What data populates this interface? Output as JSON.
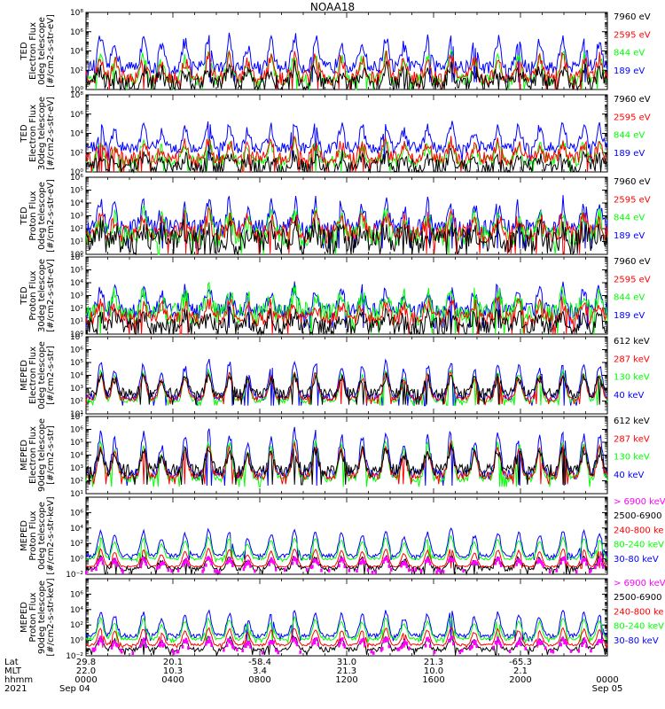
{
  "title": "NOAA18",
  "colors": {
    "blue": "#0000ff",
    "red": "#ff0000",
    "green": "#00ff00",
    "black": "#000000",
    "magenta": "#ff00ff"
  },
  "chart_data": [
    {
      "type": "line",
      "scale": "log",
      "ylabel": [
        "TED",
        "Electron Flux",
        "0deg telescope",
        "[#/cm2-s-str-eV]"
      ],
      "ylim_exp": [
        0,
        8
      ],
      "tick_labels": [
        "10⁰",
        "10²",
        "10⁴",
        "10⁶",
        "10⁸"
      ],
      "tick_exps": [
        0,
        2,
        4,
        6,
        8
      ],
      "legend": [
        {
          "text": "7960 eV",
          "color": "black"
        },
        {
          "text": "2595 eV",
          "color": "red"
        },
        {
          "text": "844 eV",
          "color": "green"
        },
        {
          "text": "189 eV",
          "color": "blue"
        }
      ],
      "baseline": {
        "blue": 2.3,
        "red": 1.2,
        "green": 1.0,
        "black": 0.6
      },
      "spread": {
        "blue": 0.7,
        "red": 0.8,
        "green": 0.6,
        "black": 0.9
      },
      "spike": 3.4
    },
    {
      "type": "line",
      "scale": "log",
      "ylabel": [
        "TED",
        "Electron Flux",
        "30deg telescope",
        "[#/cm2-s-str-eV]"
      ],
      "ylim_exp": [
        0,
        8
      ],
      "tick_labels": [
        "10⁰",
        "10²",
        "10⁴",
        "10⁶",
        "10⁸"
      ],
      "tick_exps": [
        0,
        2,
        4,
        6,
        8
      ],
      "legend": [
        {
          "text": "7960 eV",
          "color": "black"
        },
        {
          "text": "2595 eV",
          "color": "red"
        },
        {
          "text": "844 eV",
          "color": "green"
        },
        {
          "text": "189 eV",
          "color": "blue"
        }
      ],
      "baseline": {
        "blue": 2.5,
        "red": 1.4,
        "green": 1.1,
        "black": 0.5
      },
      "spread": {
        "blue": 0.6,
        "red": 0.7,
        "green": 0.6,
        "black": 0.8
      },
      "spike": 2.6
    },
    {
      "type": "line",
      "scale": "log",
      "ylabel": [
        "TED",
        "Proton Flux",
        "0deg telescope",
        "[#/cm2-s-str-eV]"
      ],
      "ylim_exp": [
        0,
        6
      ],
      "tick_labels": [
        "10⁰",
        "10¹",
        "10²",
        "10³",
        "10⁴",
        "10⁵",
        "10⁶"
      ],
      "tick_exps": [
        0,
        1,
        2,
        3,
        4,
        5,
        6
      ],
      "legend": [
        {
          "text": "7960 eV",
          "color": "black"
        },
        {
          "text": "2595 eV",
          "color": "red"
        },
        {
          "text": "844 eV",
          "color": "green"
        },
        {
          "text": "189 eV",
          "color": "blue"
        }
      ],
      "baseline": {
        "blue": 2.0,
        "red": 1.6,
        "green": 1.4,
        "black": 1.0
      },
      "spread": {
        "blue": 0.7,
        "red": 0.7,
        "green": 0.8,
        "black": 1.0
      },
      "spike": 2.2
    },
    {
      "type": "line",
      "scale": "log",
      "ylabel": [
        "TED",
        "Proton Flux",
        "30deg telescope",
        "[#/cm2-s-str-eV]"
      ],
      "ylim_exp": [
        0,
        6
      ],
      "tick_labels": [
        "10⁰",
        "10¹",
        "10²",
        "10³",
        "10⁴",
        "10⁵",
        "10⁶"
      ],
      "tick_exps": [
        0,
        1,
        2,
        3,
        4,
        5,
        6
      ],
      "legend": [
        {
          "text": "7960 eV",
          "color": "black"
        },
        {
          "text": "2595 eV",
          "color": "red"
        },
        {
          "text": "844 eV",
          "color": "green"
        },
        {
          "text": "189 eV",
          "color": "blue"
        }
      ],
      "baseline": {
        "blue": 1.8,
        "red": 1.2,
        "green": 1.6,
        "black": 0.6
      },
      "spread": {
        "blue": 0.6,
        "red": 0.6,
        "green": 0.9,
        "black": 0.7
      },
      "spike": 2.0
    },
    {
      "type": "line",
      "scale": "log",
      "ylabel": [
        "MEPED",
        "Electron Flux",
        "0deg telescope",
        "[#/cm2-s-str]"
      ],
      "ylim_exp": [
        1,
        7
      ],
      "tick_labels": [
        "10¹",
        "10²",
        "10³",
        "10⁴",
        "10⁵",
        "10⁶",
        "10⁷"
      ],
      "tick_exps": [
        1,
        2,
        3,
        4,
        5,
        6,
        7
      ],
      "legend": [
        {
          "text": "612 keV",
          "color": "black"
        },
        {
          "text": "287 keV",
          "color": "red"
        },
        {
          "text": "130 keV",
          "color": "green"
        },
        {
          "text": "40 keV",
          "color": "blue"
        }
      ],
      "baseline": {
        "blue": 2.3,
        "red": 2.2,
        "green": 2.0,
        "black": 2.6
      },
      "spread": {
        "blue": 0.3,
        "red": 0.2,
        "green": 0.15,
        "black": 0.4
      },
      "spike": 3.0
    },
    {
      "type": "line",
      "scale": "log",
      "ylabel": [
        "MEPED",
        "Electron Flux",
        "90deg telescope",
        "[#/cm2-s-str]"
      ],
      "ylim_exp": [
        1,
        7
      ],
      "tick_labels": [
        "10¹",
        "10²",
        "10³",
        "10⁴",
        "10⁵",
        "10⁶",
        "10⁷"
      ],
      "tick_exps": [
        1,
        2,
        3,
        4,
        5,
        6,
        7
      ],
      "legend": [
        {
          "text": "612 keV",
          "color": "black"
        },
        {
          "text": "287 keV",
          "color": "red"
        },
        {
          "text": "130 keV",
          "color": "green"
        },
        {
          "text": "40 keV",
          "color": "blue"
        }
      ],
      "baseline": {
        "blue": 2.5,
        "red": 2.4,
        "green": 2.2,
        "black": 2.8
      },
      "spread": {
        "blue": 0.4,
        "red": 0.3,
        "green": 0.3,
        "black": 0.5
      },
      "spike": 3.6
    },
    {
      "type": "line",
      "scale": "log",
      "ylabel": [
        "MEPED",
        "Proton Flux",
        "0deg telescope",
        "[#/cm2-s-str-keV]"
      ],
      "ylim_exp": [
        -2,
        8
      ],
      "tick_labels": [
        "10⁻²",
        "10⁰",
        "10²",
        "10⁴",
        "10⁶"
      ],
      "tick_exps": [
        -2,
        0,
        2,
        4,
        6
      ],
      "legend": [
        {
          "text": "> 6900 keV",
          "color": "magenta"
        },
        {
          "text": "2500-6900",
          "color": "black"
        },
        {
          "text": "240-800 ke",
          "color": "red"
        },
        {
          "text": "80-240 keV",
          "color": "green"
        },
        {
          "text": "30-80 keV",
          "color": "blue"
        }
      ],
      "baseline": {
        "blue": 0.4,
        "red": -1.0,
        "green": 0.0,
        "black": -1.3,
        "magenta": -1.6
      },
      "spread": {
        "blue": 0.25,
        "red": 0.1,
        "green": 0.15,
        "black": 0.3,
        "magenta": 0.2
      },
      "spike": 3.6
    },
    {
      "type": "line",
      "scale": "log",
      "ylabel": [
        "MEPED",
        "Proton Flux",
        "90deg telescope",
        "[#/cm2-s-str-keV]"
      ],
      "ylim_exp": [
        -2,
        8
      ],
      "tick_labels": [
        "10⁻²",
        "10⁰",
        "10²",
        "10⁴",
        "10⁶"
      ],
      "tick_exps": [
        -2,
        0,
        2,
        4,
        6
      ],
      "legend": [
        {
          "text": "> 6900 keV",
          "color": "magenta"
        },
        {
          "text": "2500-6900",
          "color": "black"
        },
        {
          "text": "240-800 ke",
          "color": "red"
        },
        {
          "text": "80-240 keV",
          "color": "green"
        },
        {
          "text": "30-80 keV",
          "color": "blue"
        }
      ],
      "baseline": {
        "blue": 0.6,
        "red": -0.6,
        "green": 0.2,
        "black": -1.2,
        "magenta": -1.4
      },
      "spread": {
        "blue": 0.3,
        "red": 0.15,
        "green": 0.2,
        "black": 0.3,
        "magenta": 0.3
      },
      "spike": 3.4
    }
  ],
  "footer": {
    "row_labels": [
      "Lat",
      "MLT",
      "hhmm",
      "2021"
    ],
    "columns": [
      {
        "lat": "29.8",
        "mlt": "22.0",
        "hhmm": "0000",
        "date": "Sep 04"
      },
      {
        "lat": "20.1",
        "mlt": "10.3",
        "hhmm": "0400",
        "date": ""
      },
      {
        "lat": "-58.4",
        "mlt": "3.4",
        "hhmm": "0800",
        "date": ""
      },
      {
        "lat": "31.0",
        "mlt": "21.3",
        "hhmm": "1200",
        "date": ""
      },
      {
        "lat": "21.3",
        "mlt": "10.0",
        "hhmm": "1600",
        "date": ""
      },
      {
        "lat": "-65.3",
        "mlt": "2.1",
        "hhmm": "2000",
        "date": ""
      },
      {
        "lat": "",
        "mlt": "",
        "hhmm": "0000",
        "date": "Sep 05"
      }
    ]
  }
}
